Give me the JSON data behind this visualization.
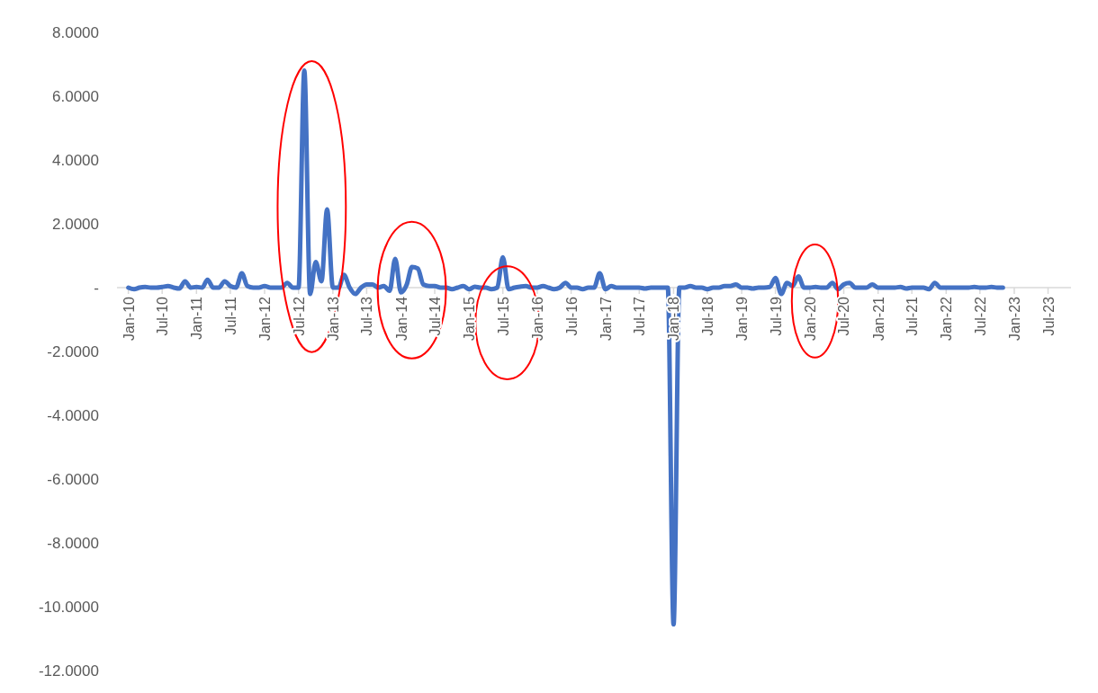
{
  "chart_data": {
    "type": "line",
    "x": [
      "2010-01",
      "2010-02",
      "2010-03",
      "2010-04",
      "2010-05",
      "2010-06",
      "2010-07",
      "2010-08",
      "2010-09",
      "2010-10",
      "2010-11",
      "2010-12",
      "2011-01",
      "2011-02",
      "2011-03",
      "2011-04",
      "2011-05",
      "2011-06",
      "2011-07",
      "2011-08",
      "2011-09",
      "2011-10",
      "2011-11",
      "2011-12",
      "2012-01",
      "2012-02",
      "2012-03",
      "2012-04",
      "2012-05",
      "2012-06",
      "2012-07",
      "2012-08",
      "2012-09",
      "2012-10",
      "2012-11",
      "2012-12",
      "2013-01",
      "2013-02",
      "2013-03",
      "2013-04",
      "2013-05",
      "2013-06",
      "2013-07",
      "2013-08",
      "2013-09",
      "2013-10",
      "2013-11",
      "2013-12",
      "2014-01",
      "2014-02",
      "2014-03",
      "2014-04",
      "2014-05",
      "2014-06",
      "2014-07",
      "2014-08",
      "2014-09",
      "2014-10",
      "2014-11",
      "2014-12",
      "2015-01",
      "2015-02",
      "2015-03",
      "2015-04",
      "2015-05",
      "2015-06",
      "2015-07",
      "2015-08",
      "2015-09",
      "2015-10",
      "2015-11",
      "2015-12",
      "2016-01",
      "2016-02",
      "2016-03",
      "2016-04",
      "2016-05",
      "2016-06",
      "2016-07",
      "2016-08",
      "2016-09",
      "2016-10",
      "2016-11",
      "2016-12",
      "2017-01",
      "2017-02",
      "2017-03",
      "2017-04",
      "2017-05",
      "2017-06",
      "2017-07",
      "2017-08",
      "2017-09",
      "2017-10",
      "2017-11",
      "2017-12",
      "2018-01",
      "2018-02",
      "2018-03",
      "2018-04",
      "2018-05",
      "2018-06",
      "2018-07",
      "2018-08",
      "2018-09",
      "2018-10",
      "2018-11",
      "2018-12",
      "2019-01",
      "2019-02",
      "2019-03",
      "2019-04",
      "2019-05",
      "2019-06",
      "2019-07",
      "2019-08",
      "2019-09",
      "2019-10",
      "2019-11",
      "2019-12",
      "2020-01",
      "2020-02",
      "2020-03",
      "2020-04",
      "2020-05",
      "2020-06",
      "2020-07",
      "2020-08",
      "2020-09",
      "2020-10",
      "2020-11",
      "2020-12",
      "2021-01",
      "2021-02",
      "2021-03",
      "2021-04",
      "2021-05",
      "2021-06",
      "2021-07",
      "2021-08",
      "2021-09",
      "2021-10",
      "2021-11",
      "2021-12",
      "2022-01",
      "2022-02",
      "2022-03",
      "2022-04",
      "2022-05",
      "2022-06",
      "2022-07",
      "2022-08",
      "2022-09",
      "2022-10",
      "2022-11"
    ],
    "series": [
      {
        "color": "#4472c4",
        "values": [
          0,
          -0.05,
          0,
          0.02,
          0,
          0,
          0.02,
          0.05,
          0,
          -0.03,
          0.2,
          0,
          0.02,
          0,
          0.25,
          0,
          0,
          0.2,
          0.05,
          0,
          0.45,
          0.05,
          0,
          0,
          0.05,
          0,
          0,
          0,
          0.15,
          0,
          0,
          6.8,
          -0.2,
          0.8,
          0.2,
          2.45,
          0,
          0,
          0.4,
          0,
          -0.2,
          0,
          0.1,
          0.1,
          0,
          0.05,
          -0.1,
          0.9,
          -0.15,
          0.1,
          0.65,
          0.6,
          0.1,
          0.05,
          0.05,
          0,
          0,
          -0.05,
          0,
          0.05,
          -0.05,
          0.03,
          0,
          0,
          -0.05,
          0,
          0.95,
          -0.05,
          0,
          0.03,
          0.05,
          0,
          0,
          0.05,
          0,
          -0.05,
          0,
          0.15,
          0,
          0,
          -0.05,
          0,
          0,
          0.45,
          -0.05,
          0.05,
          0,
          0,
          0,
          0,
          0,
          -0.03,
          0,
          0,
          0,
          0,
          -10.55,
          0,
          0,
          0.05,
          0,
          0,
          -0.05,
          0,
          0,
          0.05,
          0.05,
          0.1,
          0,
          0,
          -0.03,
          0,
          0,
          0.02,
          0.3,
          -0.2,
          0.15,
          0.05,
          0.35,
          0,
          0,
          0.02,
          0,
          0,
          0.15,
          -0.05,
          0.1,
          0.15,
          0,
          0,
          0,
          0.1,
          0,
          0,
          0,
          0,
          0.02,
          -0.03,
          0,
          0,
          0,
          -0.05,
          0.15,
          0,
          0,
          0,
          0,
          0,
          0,
          0.02,
          0,
          0,
          0.02,
          0,
          0
        ]
      }
    ],
    "xlim": [
      "2009-11",
      "2023-11"
    ],
    "xticks": [
      {
        "value": "2010-01",
        "label": "Jan-10"
      },
      {
        "value": "2010-07",
        "label": "Jul-10"
      },
      {
        "value": "2011-01",
        "label": "Jan-11"
      },
      {
        "value": "2011-07",
        "label": "Jul-11"
      },
      {
        "value": "2012-01",
        "label": "Jan-12"
      },
      {
        "value": "2012-07",
        "label": "Jul-12"
      },
      {
        "value": "2013-01",
        "label": "Jan-13"
      },
      {
        "value": "2013-07",
        "label": "Jul-13"
      },
      {
        "value": "2014-01",
        "label": "Jan-14"
      },
      {
        "value": "2014-07",
        "label": "Jul-14"
      },
      {
        "value": "2015-01",
        "label": "Jan-15"
      },
      {
        "value": "2015-07",
        "label": "Jul-15"
      },
      {
        "value": "2016-01",
        "label": "Jan-16"
      },
      {
        "value": "2016-07",
        "label": "Jul-16"
      },
      {
        "value": "2017-01",
        "label": "Jan-17"
      },
      {
        "value": "2017-07",
        "label": "Jul-17"
      },
      {
        "value": "2018-01",
        "label": "Jan-18"
      },
      {
        "value": "2018-07",
        "label": "Jul-18"
      },
      {
        "value": "2019-01",
        "label": "Jan-19"
      },
      {
        "value": "2019-07",
        "label": "Jul-19"
      },
      {
        "value": "2020-01",
        "label": "Jan-20"
      },
      {
        "value": "2020-07",
        "label": "Jul-20"
      },
      {
        "value": "2021-01",
        "label": "Jan-21"
      },
      {
        "value": "2021-07",
        "label": "Jul-21"
      },
      {
        "value": "2022-01",
        "label": "Jan-22"
      },
      {
        "value": "2022-07",
        "label": "Jul-22"
      },
      {
        "value": "2023-01",
        "label": "Jan-23"
      },
      {
        "value": "2023-07",
        "label": "Jul-23"
      }
    ],
    "ylim": [
      -12,
      8
    ],
    "yticks": [
      {
        "value": 8,
        "label": "8.0000"
      },
      {
        "value": 6,
        "label": "6.0000"
      },
      {
        "value": 4,
        "label": "4.0000"
      },
      {
        "value": 2,
        "label": "2.0000"
      },
      {
        "value": 0,
        "label": "-"
      },
      {
        "value": -2,
        "label": "-2.0000"
      },
      {
        "value": -4,
        "label": "-4.0000"
      },
      {
        "value": -6,
        "label": "-6.0000"
      },
      {
        "value": -8,
        "label": "-8.0000"
      },
      {
        "value": -10,
        "label": "-10.0000"
      },
      {
        "value": -12,
        "label": "-12.0000"
      }
    ],
    "grid": false,
    "marker": "none",
    "line_style": "solid"
  }
}
